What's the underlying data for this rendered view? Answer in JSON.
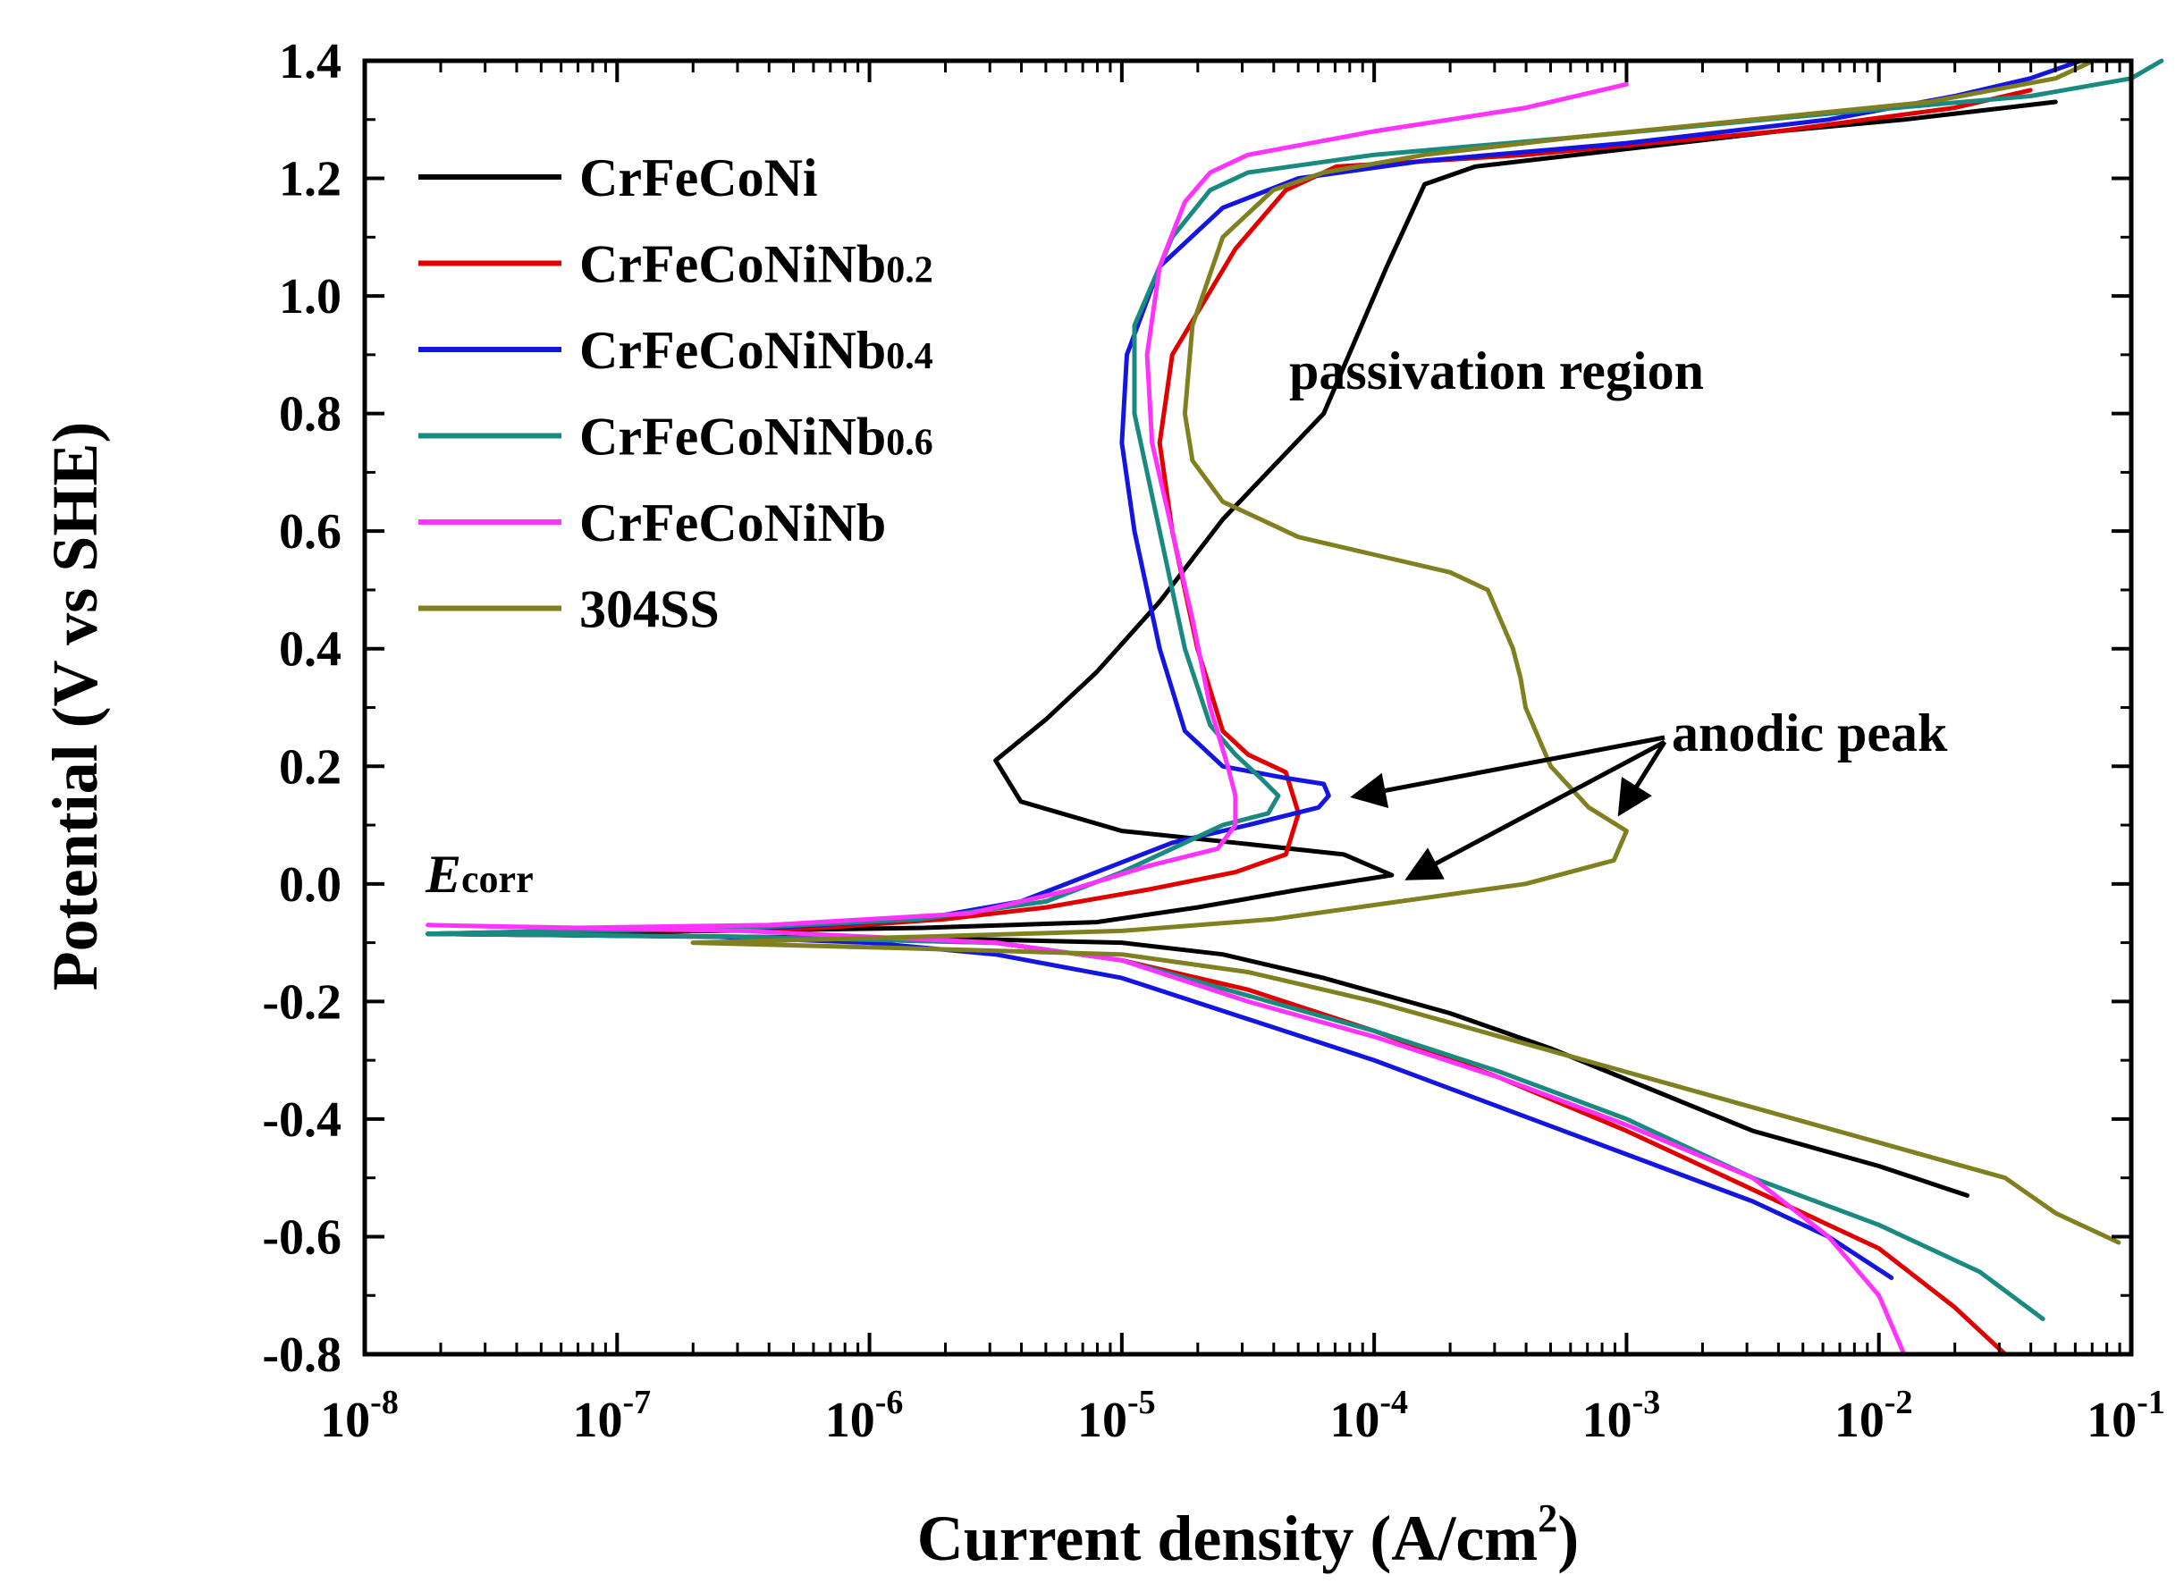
{
  "chart_data": {
    "type": "line",
    "xscale": "log",
    "xlabel_prefix": "Current density (A/cm",
    "xlabel_sup": "2",
    "xlabel_suffix": ")",
    "ylabel": "Potential (V vs SHE)",
    "xlim": [
      1e-08,
      0.1
    ],
    "ylim": [
      -0.8,
      1.4
    ],
    "y_ticks": [
      1.4,
      1.2,
      1.0,
      0.8,
      0.6,
      0.4,
      0.2,
      0.0,
      -0.2,
      -0.4,
      -0.6,
      -0.8
    ],
    "y_tick_labels": [
      "1.4",
      "1.2",
      "1.0",
      "0.8",
      "0.6",
      "0.4",
      "0.2",
      "0.0",
      "-0.2",
      "-0.4",
      "-0.6",
      "-0.8"
    ],
    "x_ticks": [
      {
        "base": "10",
        "exp": "-8",
        "value": -8
      },
      {
        "base": "10",
        "exp": "-7",
        "value": -7
      },
      {
        "base": "10",
        "exp": "-6",
        "value": -6
      },
      {
        "base": "10",
        "exp": "-5",
        "value": -5
      },
      {
        "base": "10",
        "exp": "-4",
        "value": -4
      },
      {
        "base": "10",
        "exp": "-3",
        "value": -3
      },
      {
        "base": "10",
        "exp": "-2",
        "value": -2
      },
      {
        "base": "10",
        "exp": "-1",
        "value": -1
      }
    ],
    "legend_position": "top-left",
    "series": [
      {
        "name": "CrFeCoNi",
        "label_main": "CrFeCoNi",
        "label_sub": "",
        "color": "#000000",
        "points": [
          [
            -1.3,
            1.33
          ],
          [
            -1.9,
            1.3
          ],
          [
            -2.4,
            1.28
          ],
          [
            -3.0,
            1.25
          ],
          [
            -3.6,
            1.22
          ],
          [
            -3.8,
            1.19
          ],
          [
            -3.95,
            1.05
          ],
          [
            -4.2,
            0.8
          ],
          [
            -4.6,
            0.62
          ],
          [
            -4.85,
            0.48
          ],
          [
            -5.1,
            0.36
          ],
          [
            -5.3,
            0.28
          ],
          [
            -5.5,
            0.21
          ],
          [
            -5.4,
            0.14
          ],
          [
            -5.0,
            0.09
          ],
          [
            -4.55,
            0.07
          ],
          [
            -4.12,
            0.05
          ],
          [
            -3.93,
            0.015
          ],
          [
            -4.3,
            -0.01
          ],
          [
            -4.7,
            -0.04
          ],
          [
            -5.1,
            -0.065
          ],
          [
            -5.8,
            -0.075
          ],
          [
            -6.6,
            -0.08
          ],
          [
            -7.5,
            -0.085
          ],
          [
            -7.75,
            -0.085
          ],
          [
            -6.5,
            -0.09
          ],
          [
            -5.5,
            -0.095
          ],
          [
            -5.0,
            -0.1
          ],
          [
            -4.6,
            -0.12
          ],
          [
            -4.2,
            -0.16
          ],
          [
            -3.7,
            -0.22
          ],
          [
            -3.3,
            -0.28
          ],
          [
            -2.9,
            -0.35
          ],
          [
            -2.5,
            -0.42
          ],
          [
            -2.0,
            -0.48
          ],
          [
            -1.65,
            -0.53
          ]
        ]
      },
      {
        "name": "CrFeCoNiNb0.2",
        "label_main": "CrFeCoNiNb",
        "label_sub": "0.2",
        "color": "#e00000",
        "points": [
          [
            -1.4,
            1.35
          ],
          [
            -1.7,
            1.32
          ],
          [
            -2.4,
            1.28
          ],
          [
            -3.4,
            1.24
          ],
          [
            -4.15,
            1.22
          ],
          [
            -4.35,
            1.18
          ],
          [
            -4.55,
            1.08
          ],
          [
            -4.8,
            0.9
          ],
          [
            -4.85,
            0.75
          ],
          [
            -4.8,
            0.6
          ],
          [
            -4.7,
            0.4
          ],
          [
            -4.6,
            0.26
          ],
          [
            -4.5,
            0.22
          ],
          [
            -4.35,
            0.19
          ],
          [
            -4.3,
            0.12
          ],
          [
            -4.35,
            0.05
          ],
          [
            -4.55,
            0.02
          ],
          [
            -4.9,
            -0.01
          ],
          [
            -5.3,
            -0.04
          ],
          [
            -5.7,
            -0.06
          ],
          [
            -6.2,
            -0.075
          ],
          [
            -7.0,
            -0.08
          ],
          [
            -7.75,
            -0.085
          ],
          [
            -6.5,
            -0.09
          ],
          [
            -5.5,
            -0.1
          ],
          [
            -5.0,
            -0.13
          ],
          [
            -4.5,
            -0.18
          ],
          [
            -4.0,
            -0.25
          ],
          [
            -3.5,
            -0.33
          ],
          [
            -3.0,
            -0.42
          ],
          [
            -2.5,
            -0.52
          ],
          [
            -2.0,
            -0.62
          ],
          [
            -1.7,
            -0.72
          ],
          [
            -1.5,
            -0.8
          ]
        ]
      },
      {
        "name": "CrFeCoNiNb0.4",
        "label_main": "CrFeCoNiNb",
        "label_sub": "0.4",
        "color": "#1515e0",
        "points": [
          [
            -1.2,
            1.4
          ],
          [
            -1.4,
            1.37
          ],
          [
            -1.7,
            1.34
          ],
          [
            -2.2,
            1.3
          ],
          [
            -3.0,
            1.26
          ],
          [
            -3.8,
            1.23
          ],
          [
            -4.3,
            1.2
          ],
          [
            -4.6,
            1.15
          ],
          [
            -4.85,
            1.05
          ],
          [
            -4.98,
            0.9
          ],
          [
            -5.0,
            0.75
          ],
          [
            -4.95,
            0.6
          ],
          [
            -4.85,
            0.4
          ],
          [
            -4.75,
            0.26
          ],
          [
            -4.6,
            0.2
          ],
          [
            -4.35,
            0.18
          ],
          [
            -4.2,
            0.17
          ],
          [
            -4.18,
            0.15
          ],
          [
            -4.22,
            0.13
          ],
          [
            -4.5,
            0.1
          ],
          [
            -4.8,
            0.07
          ],
          [
            -5.1,
            0.02
          ],
          [
            -5.4,
            -0.03
          ],
          [
            -5.8,
            -0.06
          ],
          [
            -6.4,
            -0.075
          ],
          [
            -7.2,
            -0.08
          ],
          [
            -7.75,
            -0.085
          ],
          [
            -6.6,
            -0.09
          ],
          [
            -6.0,
            -0.1
          ],
          [
            -5.5,
            -0.12
          ],
          [
            -5.0,
            -0.16
          ],
          [
            -4.5,
            -0.23
          ],
          [
            -4.0,
            -0.3
          ],
          [
            -3.5,
            -0.38
          ],
          [
            -3.0,
            -0.46
          ],
          [
            -2.5,
            -0.54
          ],
          [
            -2.2,
            -0.6
          ],
          [
            -1.95,
            -0.67
          ]
        ]
      },
      {
        "name": "CrFeCoNiNb0.6",
        "label_main": "CrFeCoNiNb",
        "label_sub": "0.6",
        "color": "#1a8a80",
        "points": [
          [
            -0.88,
            1.4
          ],
          [
            -1.0,
            1.37
          ],
          [
            -1.4,
            1.34
          ],
          [
            -2.2,
            1.31
          ],
          [
            -3.2,
            1.27
          ],
          [
            -4.0,
            1.24
          ],
          [
            -4.5,
            1.21
          ],
          [
            -4.65,
            1.18
          ],
          [
            -4.8,
            1.1
          ],
          [
            -4.95,
            0.95
          ],
          [
            -4.95,
            0.8
          ],
          [
            -4.85,
            0.6
          ],
          [
            -4.75,
            0.4
          ],
          [
            -4.65,
            0.27
          ],
          [
            -4.55,
            0.22
          ],
          [
            -4.45,
            0.18
          ],
          [
            -4.38,
            0.15
          ],
          [
            -4.42,
            0.12
          ],
          [
            -4.6,
            0.1
          ],
          [
            -4.75,
            0.07
          ],
          [
            -5.0,
            0.02
          ],
          [
            -5.3,
            -0.03
          ],
          [
            -5.8,
            -0.06
          ],
          [
            -6.5,
            -0.075
          ],
          [
            -7.2,
            -0.08
          ],
          [
            -7.75,
            -0.085
          ],
          [
            -6.5,
            -0.09
          ],
          [
            -5.5,
            -0.1
          ],
          [
            -5.0,
            -0.13
          ],
          [
            -4.5,
            -0.19
          ],
          [
            -4.0,
            -0.25
          ],
          [
            -3.5,
            -0.32
          ],
          [
            -3.0,
            -0.4
          ],
          [
            -2.5,
            -0.5
          ],
          [
            -2.0,
            -0.58
          ],
          [
            -1.6,
            -0.66
          ],
          [
            -1.35,
            -0.74
          ]
        ]
      },
      {
        "name": "CrFeCoNiNb",
        "label_main": "CrFeCoNiNb",
        "label_sub": "",
        "color": "#ff33ff",
        "points": [
          [
            -3.0,
            1.36
          ],
          [
            -3.4,
            1.32
          ],
          [
            -4.0,
            1.28
          ],
          [
            -4.5,
            1.24
          ],
          [
            -4.65,
            1.21
          ],
          [
            -4.75,
            1.16
          ],
          [
            -4.85,
            1.05
          ],
          [
            -4.9,
            0.9
          ],
          [
            -4.88,
            0.75
          ],
          [
            -4.8,
            0.6
          ],
          [
            -4.72,
            0.45
          ],
          [
            -4.65,
            0.3
          ],
          [
            -4.58,
            0.2
          ],
          [
            -4.55,
            0.15
          ],
          [
            -4.55,
            0.1
          ],
          [
            -4.62,
            0.06
          ],
          [
            -4.9,
            0.03
          ],
          [
            -5.2,
            -0.01
          ],
          [
            -5.6,
            -0.05
          ],
          [
            -6.4,
            -0.07
          ],
          [
            -7.2,
            -0.075
          ],
          [
            -7.75,
            -0.07
          ],
          [
            -6.5,
            -0.08
          ],
          [
            -5.5,
            -0.1
          ],
          [
            -5.0,
            -0.13
          ],
          [
            -4.5,
            -0.2
          ],
          [
            -4.0,
            -0.26
          ],
          [
            -3.5,
            -0.33
          ],
          [
            -3.0,
            -0.41
          ],
          [
            -2.5,
            -0.5
          ],
          [
            -2.2,
            -0.6
          ],
          [
            -2.0,
            -0.7
          ],
          [
            -1.9,
            -0.8
          ]
        ]
      },
      {
        "name": "304SS",
        "label_main": "304SS",
        "label_sub": "",
        "color": "#808020",
        "points": [
          [
            -1.15,
            1.4
          ],
          [
            -1.3,
            1.37
          ],
          [
            -1.8,
            1.33
          ],
          [
            -2.5,
            1.3
          ],
          [
            -3.2,
            1.27
          ],
          [
            -3.8,
            1.24
          ],
          [
            -4.2,
            1.21
          ],
          [
            -4.4,
            1.18
          ],
          [
            -4.6,
            1.1
          ],
          [
            -4.72,
            0.95
          ],
          [
            -4.75,
            0.8
          ],
          [
            -4.72,
            0.72
          ],
          [
            -4.6,
            0.65
          ],
          [
            -4.3,
            0.59
          ],
          [
            -4.0,
            0.56
          ],
          [
            -3.7,
            0.53
          ],
          [
            -3.55,
            0.5
          ],
          [
            -3.5,
            0.45
          ],
          [
            -3.45,
            0.4
          ],
          [
            -3.42,
            0.35
          ],
          [
            -3.4,
            0.3
          ],
          [
            -3.3,
            0.2
          ],
          [
            -3.15,
            0.13
          ],
          [
            -3.0,
            0.09
          ],
          [
            -3.05,
            0.04
          ],
          [
            -3.4,
            0.0
          ],
          [
            -3.9,
            -0.03
          ],
          [
            -4.4,
            -0.06
          ],
          [
            -5.0,
            -0.08
          ],
          [
            -5.8,
            -0.09
          ],
          [
            -6.7,
            -0.1
          ],
          [
            -5.8,
            -0.11
          ],
          [
            -5.0,
            -0.12
          ],
          [
            -4.5,
            -0.15
          ],
          [
            -4.0,
            -0.2
          ],
          [
            -3.5,
            -0.26
          ],
          [
            -3.0,
            -0.32
          ],
          [
            -2.5,
            -0.38
          ],
          [
            -2.0,
            -0.44
          ],
          [
            -1.5,
            -0.5
          ],
          [
            -1.3,
            -0.56
          ],
          [
            -1.05,
            -0.61
          ]
        ]
      }
    ],
    "annotations": {
      "passivation": "passivation region",
      "anodic": "anodic peak",
      "ecorr_main": "E",
      "ecorr_sub": "corr"
    }
  }
}
